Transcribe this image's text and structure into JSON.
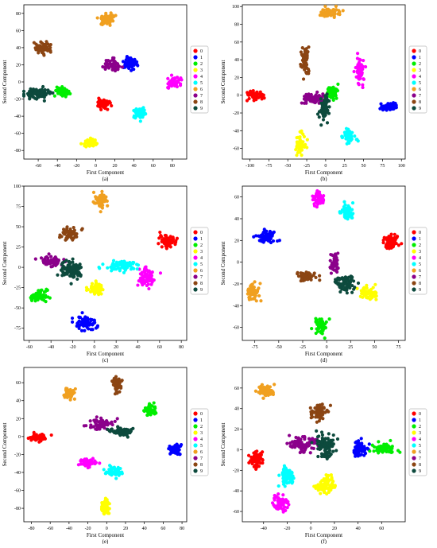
{
  "figure": {
    "panels": [
      {
        "caption": "(a)",
        "chart": {
          "type": "scatter",
          "xlabel": "First Component",
          "ylabel": "Second Component",
          "xlim": [
            -75,
            95
          ],
          "ylim": [
            -90,
            90
          ],
          "xticks": [
            -60,
            -40,
            -20,
            0,
            20,
            40,
            60,
            80
          ],
          "yticks": [
            -80,
            -60,
            -40,
            -20,
            0,
            20,
            40,
            60,
            80
          ],
          "legend": "right",
          "clusters": [
            {
              "label": "0",
              "cx": 7,
              "cy": -25,
              "n": 65,
              "sx": 3.5,
              "sy": 2.8
            },
            {
              "label": "1",
              "cx": 36,
              "cy": 22,
              "n": 75,
              "sx": 3.5,
              "sy": 3.2
            },
            {
              "label": "2",
              "cx": -35,
              "cy": -11,
              "n": 65,
              "sx": 3,
              "sy": 3
            },
            {
              "label": "3",
              "cx": -6,
              "cy": -72,
              "n": 60,
              "sx": 3,
              "sy": 2.5
            },
            {
              "label": "4",
              "cx": 82,
              "cy": -1,
              "n": 60,
              "sx": 4,
              "sy": 3
            },
            {
              "label": "5",
              "cx": 46,
              "cy": -37,
              "n": 60,
              "sx": 3,
              "sy": 3
            },
            {
              "label": "6",
              "cx": 11,
              "cy": 73,
              "n": 65,
              "sx": 3.5,
              "sy": 3
            },
            {
              "label": "7",
              "cx": 17,
              "cy": 20,
              "n": 65,
              "sx": 4,
              "sy": 3
            },
            {
              "label": "8",
              "cx": -55,
              "cy": 39,
              "n": 65,
              "sx": 4,
              "sy": 3
            },
            {
              "label": "9",
              "cx": -58,
              "cy": -14,
              "n": 90,
              "sx": 6,
              "sy": 2.5
            }
          ]
        }
      },
      {
        "caption": "(b)",
        "chart": {
          "type": "scatter",
          "xlabel": "First Component",
          "ylabel": "Second Component",
          "xlim": [
            -110,
            105
          ],
          "ylim": [
            -72,
            102
          ],
          "xticks": [
            -100,
            -75,
            -50,
            -25,
            0,
            25,
            50,
            75,
            100
          ],
          "yticks": [
            -60,
            -40,
            -20,
            0,
            20,
            40,
            60,
            80,
            100
          ],
          "legend": "right",
          "clusters": [
            {
              "label": "0",
              "cx": -92,
              "cy": -1,
              "n": 60,
              "sx": 6,
              "sy": 3
            },
            {
              "label": "1",
              "cx": 85,
              "cy": -12,
              "n": 60,
              "sx": 5,
              "sy": 2
            },
            {
              "label": "2",
              "cx": 8,
              "cy": 4,
              "n": 60,
              "sx": 3,
              "sy": 4
            },
            {
              "label": "3",
              "cx": -33,
              "cy": -55,
              "n": 60,
              "sx": 3,
              "sy": 6
            },
            {
              "label": "4",
              "cx": 45,
              "cy": 28,
              "n": 60,
              "sx": 3,
              "sy": 7
            },
            {
              "label": "5",
              "cx": 31,
              "cy": -46,
              "n": 60,
              "sx": 4,
              "sy": 4
            },
            {
              "label": "6",
              "cx": 5,
              "cy": 93,
              "n": 60,
              "sx": 6,
              "sy": 3
            },
            {
              "label": "7",
              "cx": -17,
              "cy": -4,
              "n": 80,
              "sx": 7,
              "sy": 3
            },
            {
              "label": "8",
              "cx": -27,
              "cy": 38,
              "n": 60,
              "sx": 3,
              "sy": 7
            },
            {
              "label": "9",
              "cx": -1,
              "cy": -14,
              "n": 80,
              "sx": 3,
              "sy": 7
            }
          ]
        }
      },
      {
        "caption": "(c)",
        "chart": {
          "type": "scatter",
          "xlabel": "First Component",
          "ylabel": "Second Component",
          "xlim": [
            -65,
            85
          ],
          "ylim": [
            -90,
            100
          ],
          "xticks": [
            -60,
            -40,
            -20,
            0,
            20,
            40,
            60,
            80
          ],
          "yticks": [
            -75,
            -50,
            -25,
            0,
            25,
            50,
            75,
            100
          ],
          "legend": "right",
          "clusters": [
            {
              "label": "0",
              "cx": 68,
              "cy": 32,
              "n": 70,
              "sx": 4,
              "sy": 4
            },
            {
              "label": "1",
              "cx": -9,
              "cy": -68,
              "n": 70,
              "sx": 5,
              "sy": 4
            },
            {
              "label": "2",
              "cx": -51,
              "cy": -35,
              "n": 70,
              "sx": 4,
              "sy": 4
            },
            {
              "label": "3",
              "cx": 2,
              "cy": -26,
              "n": 60,
              "sx": 3,
              "sy": 4
            },
            {
              "label": "4",
              "cx": 48,
              "cy": -12,
              "n": 70,
              "sx": 4,
              "sy": 5
            },
            {
              "label": "5",
              "cx": 25,
              "cy": 2,
              "n": 80,
              "sx": 8,
              "sy": 3
            },
            {
              "label": "6",
              "cx": 6,
              "cy": 82,
              "n": 60,
              "sx": 3,
              "sy": 5
            },
            {
              "label": "7",
              "cx": -40,
              "cy": 8,
              "n": 70,
              "sx": 5,
              "sy": 3
            },
            {
              "label": "8",
              "cx": -23,
              "cy": 41,
              "n": 60,
              "sx": 4,
              "sy": 4
            },
            {
              "label": "9",
              "cx": -20,
              "cy": -3,
              "n": 90,
              "sx": 5,
              "sy": 5
            }
          ]
        }
      },
      {
        "caption": "(d)",
        "chart": {
          "type": "scatter",
          "xlabel": "First Component",
          "ylabel": "Second Component",
          "xlim": [
            -88,
            82
          ],
          "ylim": [
            -72,
            70
          ],
          "xticks": [
            -75,
            -50,
            -25,
            0,
            25,
            50,
            75
          ],
          "yticks": [
            -60,
            -40,
            -20,
            0,
            20,
            40,
            60
          ],
          "legend": "right",
          "clusters": [
            {
              "label": "0",
              "cx": 68,
              "cy": 19,
              "n": 70,
              "sx": 4,
              "sy": 3
            },
            {
              "label": "1",
              "cx": -62,
              "cy": 23,
              "n": 70,
              "sx": 5,
              "sy": 3
            },
            {
              "label": "2",
              "cx": -6,
              "cy": -58,
              "n": 60,
              "sx": 3,
              "sy": 4
            },
            {
              "label": "3",
              "cx": 43,
              "cy": -29,
              "n": 60,
              "sx": 4,
              "sy": 3
            },
            {
              "label": "4",
              "cx": -8,
              "cy": 57,
              "n": 60,
              "sx": 3,
              "sy": 4
            },
            {
              "label": "5",
              "cx": 21,
              "cy": 46,
              "n": 60,
              "sx": 3,
              "sy": 4
            },
            {
              "label": "6",
              "cx": -77,
              "cy": -28,
              "n": 60,
              "sx": 3,
              "sy": 4
            },
            {
              "label": "7",
              "cx": 8,
              "cy": -1,
              "n": 50,
              "sx": 2.5,
              "sy": 4
            },
            {
              "label": "8",
              "cx": -22,
              "cy": -13,
              "n": 60,
              "sx": 5,
              "sy": 2
            },
            {
              "label": "9",
              "cx": 20,
              "cy": -20,
              "n": 80,
              "sx": 5,
              "sy": 4
            }
          ]
        }
      },
      {
        "caption": "(e)",
        "chart": {
          "type": "scatter",
          "xlabel": "First Component",
          "ylabel": "Second Component",
          "xlim": [
            -88,
            85
          ],
          "ylim": [
            -95,
            77
          ],
          "xticks": [
            -80,
            -60,
            -40,
            -20,
            0,
            20,
            40,
            60,
            80
          ],
          "yticks": [
            -80,
            -60,
            -40,
            -20,
            0,
            20,
            40,
            60
          ],
          "legend": "right",
          "clusters": [
            {
              "label": "0",
              "cx": -73,
              "cy": -1,
              "n": 60,
              "sx": 4,
              "sy": 2
            },
            {
              "label": "1",
              "cx": 73,
              "cy": -14,
              "n": 60,
              "sx": 2.5,
              "sy": 3
            },
            {
              "label": "2",
              "cx": 46,
              "cy": 29,
              "n": 60,
              "sx": 3,
              "sy": 3
            },
            {
              "label": "3",
              "cx": -2,
              "cy": -78,
              "n": 60,
              "sx": 2,
              "sy": 4
            },
            {
              "label": "4",
              "cx": -20,
              "cy": -29,
              "n": 50,
              "sx": 4,
              "sy": 2
            },
            {
              "label": "5",
              "cx": 8,
              "cy": -39,
              "n": 60,
              "sx": 4,
              "sy": 2.5
            },
            {
              "label": "6",
              "cx": -40,
              "cy": 48,
              "n": 60,
              "sx": 3,
              "sy": 3
            },
            {
              "label": "7",
              "cx": -6,
              "cy": 14,
              "n": 70,
              "sx": 6,
              "sy": 3
            },
            {
              "label": "8",
              "cx": 11,
              "cy": 60,
              "n": 60,
              "sx": 2.5,
              "sy": 5
            },
            {
              "label": "9",
              "cx": 15,
              "cy": 5,
              "n": 70,
              "sx": 6,
              "sy": 3
            }
          ]
        }
      },
      {
        "caption": "(f)",
        "chart": {
          "type": "scatter",
          "xlabel": "First Component",
          "ylabel": "Second Component",
          "xlim": [
            -58,
            80
          ],
          "ylim": [
            -70,
            80
          ],
          "xticks": [
            -40,
            -20,
            0,
            20,
            40,
            60
          ],
          "yticks": [
            -60,
            -40,
            -20,
            0,
            20,
            40,
            60
          ],
          "legend": "right",
          "clusters": [
            {
              "label": "0",
              "cx": -46,
              "cy": -10,
              "n": 70,
              "sx": 3,
              "sy": 4
            },
            {
              "label": "1",
              "cx": 41,
              "cy": 1,
              "n": 65,
              "sx": 3,
              "sy": 4
            },
            {
              "label": "2",
              "cx": 63,
              "cy": 1,
              "n": 70,
              "sx": 5,
              "sy": 2.5
            },
            {
              "label": "3",
              "cx": 13,
              "cy": -34,
              "n": 70,
              "sx": 4,
              "sy": 4
            },
            {
              "label": "4",
              "cx": -26,
              "cy": -52,
              "n": 65,
              "sx": 3,
              "sy": 3.5
            },
            {
              "label": "5",
              "cx": -20,
              "cy": -25,
              "n": 70,
              "sx": 3,
              "sy": 5
            },
            {
              "label": "6",
              "cx": -38,
              "cy": 57,
              "n": 70,
              "sx": 4,
              "sy": 3.5
            },
            {
              "label": "7",
              "cx": -7,
              "cy": 5,
              "n": 90,
              "sx": 6,
              "sy": 4
            },
            {
              "label": "8",
              "cx": 7,
              "cy": 37,
              "n": 65,
              "sx": 3.5,
              "sy": 4
            },
            {
              "label": "9",
              "cx": 13,
              "cy": 4,
              "n": 95,
              "sx": 4,
              "sy": 6
            }
          ]
        }
      }
    ],
    "legend": {
      "labels": [
        "0",
        "1",
        "2",
        "3",
        "4",
        "5",
        "6",
        "7",
        "8",
        "9"
      ],
      "colors": [
        "#ff0000",
        "#0000ff",
        "#00ee00",
        "#ffff00",
        "#ff00ff",
        "#00ffff",
        "#f0a020",
        "#8b008b",
        "#8b4513",
        "#0d4a3d"
      ]
    }
  }
}
